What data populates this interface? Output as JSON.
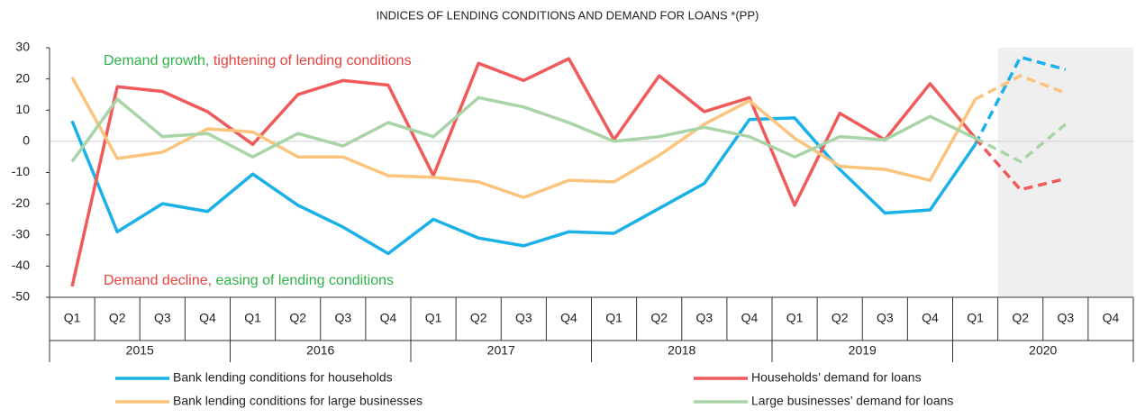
{
  "chart_data": {
    "type": "line",
    "title": "INDICES OF LENDING CONDITIONS AND DEMAND FOR LOANS *(PP)",
    "annotations": [
      [
        {
          "text": "Demand growth, ",
          "color": "#2db34a"
        },
        {
          "text": "tightening of lending conditions",
          "color": "#e8423f"
        }
      ],
      [
        {
          "text": "Demand decline, ",
          "color": "#e8423f"
        },
        {
          "text": "easing of lending conditions",
          "color": "#2db34a"
        }
      ]
    ],
    "categories": [
      "Q1",
      "Q2",
      "Q3",
      "Q4",
      "Q1",
      "Q2",
      "Q3",
      "Q4",
      "Q1",
      "Q2",
      "Q3",
      "Q4",
      "Q1",
      "Q2",
      "Q3",
      "Q4",
      "Q1",
      "Q2",
      "Q3",
      "Q4",
      "Q1",
      "Q2",
      "Q3",
      "Q4"
    ],
    "groups": [
      "2015",
      "2016",
      "2017",
      "2018",
      "2019",
      "2020"
    ],
    "dashed_from": 20,
    "shaded_from": 21,
    "ylim": [
      -50,
      30
    ],
    "yticks": [
      30,
      20,
      10,
      0,
      -10,
      -20,
      -30,
      -40,
      -50
    ],
    "series": [
      {
        "name": "Bank lending conditions for households",
        "color": "#1ab0e8",
        "values": [
          6.5,
          -29,
          -20,
          -22.5,
          -10.5,
          -20.5,
          -27.5,
          -36,
          -25,
          -31,
          -33.5,
          -29,
          -29.5,
          -21.5,
          -13.5,
          7,
          7.5,
          -9,
          -23,
          -22,
          -1,
          27,
          23,
          null
        ]
      },
      {
        "name": "Households’ demand for loans",
        "color": "#f05a5a",
        "values": [
          -46.5,
          17.5,
          16,
          9.5,
          -1,
          15,
          19.5,
          18,
          -11,
          25,
          19.5,
          26.5,
          0.5,
          21,
          9.5,
          14,
          -20.5,
          9,
          0.5,
          18.5,
          1,
          -15.5,
          -12,
          null
        ]
      },
      {
        "name": "Bank lending conditions for large businesses",
        "color": "#fbc47c",
        "values": [
          20.5,
          -5.5,
          -3.5,
          4,
          3,
          -5,
          -5,
          -11,
          -11.5,
          -13,
          -18,
          -12.5,
          -13,
          -4.5,
          5.5,
          13,
          1,
          -8,
          -9,
          -12.5,
          13.5,
          21,
          15.5,
          null
        ]
      },
      {
        "name": "Large businesses’ demand for loans",
        "color": "#a8d4a8",
        "values": [
          -6.5,
          13.5,
          1.5,
          2.5,
          -5,
          2.5,
          -1.5,
          6,
          1.5,
          14,
          11,
          6,
          0,
          1.5,
          4.5,
          1.5,
          -5,
          1.5,
          0.5,
          8,
          1,
          -6.5,
          5.5,
          null
        ]
      }
    ]
  }
}
